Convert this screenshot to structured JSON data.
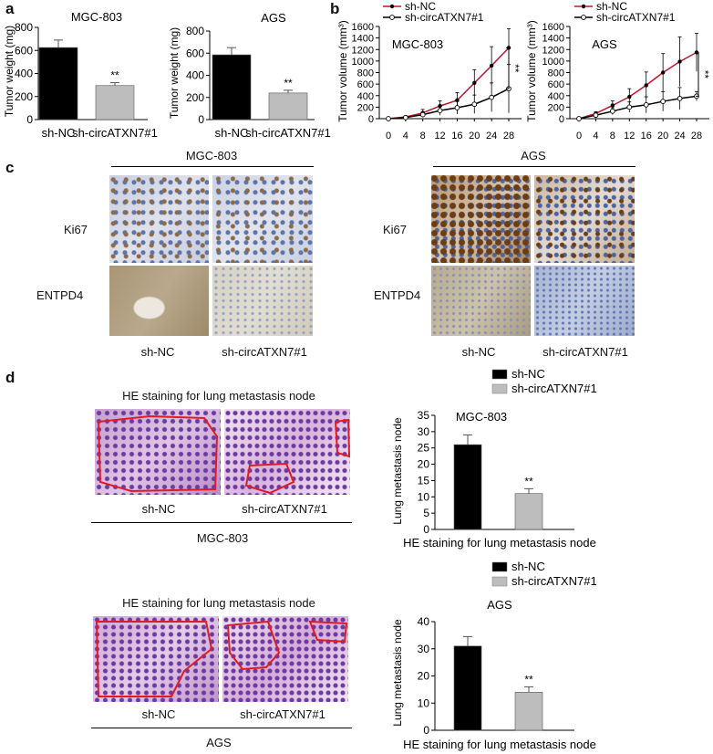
{
  "panels": {
    "a": "a",
    "b": "b",
    "c": "c",
    "d": "d"
  },
  "chart_data": [
    {
      "id": "a-mgc",
      "type": "bar",
      "title": "MGC-803",
      "categories": [
        "sh-NC",
        "sh-circATXN7#1"
      ],
      "values": [
        625,
        295
      ],
      "errors": [
        65,
        25
      ],
      "significance": [
        "",
        "**"
      ],
      "ylabel": "Tumor weight (mg)",
      "xlabel": "",
      "ylim": [
        0,
        800
      ],
      "yticks": [
        0,
        200,
        400,
        600,
        800
      ],
      "colors": [
        "#000000",
        "#bdbdbd"
      ]
    },
    {
      "id": "a-ags",
      "type": "bar",
      "title": "AGS",
      "categories": [
        "sh-NC",
        "sh-circATXN7#1"
      ],
      "values": [
        585,
        240
      ],
      "errors": [
        65,
        25
      ],
      "significance": [
        "",
        "**"
      ],
      "ylabel": "Tumor weight (mg)",
      "xlabel": "",
      "ylim": [
        0,
        800
      ],
      "yticks": [
        0,
        200,
        400,
        600,
        800
      ],
      "colors": [
        "#000000",
        "#bdbdbd"
      ]
    },
    {
      "id": "b-mgc",
      "type": "line",
      "title": "MGC-803",
      "x": [
        0,
        4,
        8,
        12,
        16,
        20,
        24,
        28
      ],
      "series": [
        {
          "name": "sh-NC",
          "values": [
            0,
            30,
            100,
            220,
            320,
            620,
            920,
            1230
          ],
          "errors": [
            0,
            20,
            60,
            90,
            130,
            230,
            330,
            330
          ],
          "color": "#c0142d"
        },
        {
          "name": "sh-circATXN7#1",
          "values": [
            0,
            20,
            70,
            140,
            190,
            250,
            370,
            520
          ],
          "errors": [
            0,
            15,
            45,
            80,
            110,
            160,
            250,
            420
          ],
          "color": "#000000"
        }
      ],
      "significance": "**",
      "xlabel": "Days",
      "ylabel": "Tumor volume (mm³)",
      "ylim": [
        0,
        1600
      ],
      "yticks": [
        0,
        200,
        400,
        600,
        800,
        1000,
        1200,
        1400,
        1600
      ],
      "legend": "top"
    },
    {
      "id": "b-ags",
      "type": "line",
      "title": "AGS",
      "x": [
        0,
        4,
        8,
        12,
        16,
        20,
        24,
        28
      ],
      "series": [
        {
          "name": "sh-NC",
          "values": [
            0,
            90,
            230,
            380,
            580,
            800,
            990,
            1150
          ],
          "errors": [
            0,
            30,
            80,
            140,
            230,
            330,
            430,
            330
          ],
          "color": "#c0142d"
        },
        {
          "name": "sh-circATXN7#1",
          "values": [
            0,
            60,
            130,
            200,
            240,
            300,
            350,
            390
          ],
          "errors": [
            0,
            30,
            60,
            90,
            140,
            170,
            190,
            80
          ],
          "color": "#000000"
        }
      ],
      "significance": "**",
      "xlabel": "Days",
      "ylabel": "Tumor volume (mm³)",
      "ylim": [
        0,
        1600
      ],
      "yticks": [
        0,
        200,
        400,
        600,
        800,
        1000,
        1200,
        1400,
        1600
      ],
      "legend": "top"
    },
    {
      "id": "d-mgc",
      "type": "bar",
      "title": "MGC-803",
      "categories": [
        "sh-NC",
        "sh-circATXN7#1"
      ],
      "values": [
        26,
        11
      ],
      "errors": [
        3,
        1.5
      ],
      "significance": [
        "",
        "**"
      ],
      "xlabel": "HE staining for lung metastasis node",
      "ylabel": "Lung metastasis node",
      "ylim": [
        0,
        35
      ],
      "yticks": [
        0,
        5,
        10,
        15,
        20,
        25,
        30,
        35
      ],
      "legend_entries": [
        "sh-NC",
        "sh-circATXN7#1"
      ],
      "colors": [
        "#000000",
        "#bdbdbd"
      ]
    },
    {
      "id": "d-ags",
      "type": "bar",
      "title": "AGS",
      "categories": [
        "sh-NC",
        "sh-circATXN7#1"
      ],
      "values": [
        31,
        14
      ],
      "errors": [
        3.5,
        2
      ],
      "significance": [
        "",
        "**"
      ],
      "xlabel": "HE staining for lung metastasis node",
      "ylabel": "Lung metastasis node",
      "ylim": [
        0,
        40
      ],
      "yticks": [
        0,
        10,
        20,
        30,
        40
      ],
      "legend_entries": [
        "sh-NC",
        "sh-circATXN7#1"
      ],
      "colors": [
        "#000000",
        "#bdbdbd"
      ]
    }
  ],
  "ihc": {
    "mgc_title": "MGC-803",
    "ags_title": "AGS",
    "row_labels": [
      "Ki67",
      "ENTPD4"
    ],
    "col_labels": [
      "sh-NC",
      "sh-circATXN7#1"
    ]
  },
  "he": {
    "mgc_title": "HE staining for lung metastasis node",
    "ags_title": "HE staining for lung metastasis node",
    "col_labels": [
      "sh-NC",
      "sh-circATXN7#1"
    ],
    "mgc_group": "MGC-803",
    "ags_group": "AGS"
  }
}
